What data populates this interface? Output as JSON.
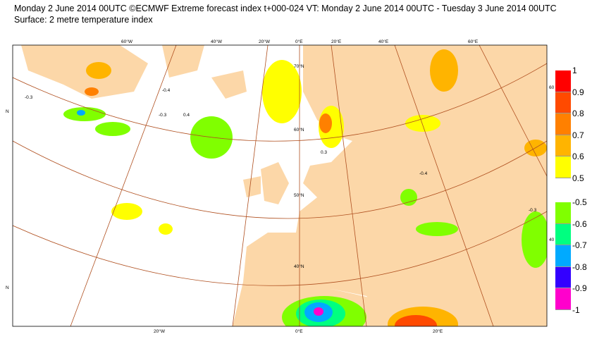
{
  "title": {
    "line1": "Monday 2 June 2014 00UTC ©ECMWF Extreme forecast index t+000-024 VT: Monday 2 June 2014 00UTC - Tuesday 3 June 2014 00UTC",
    "line2": "Surface: 2 metre temperature index"
  },
  "map": {
    "land_color": "#fcd7a8",
    "ocean_color": "#ffffff",
    "graticule_color": "#b05020",
    "lon_labels_top": [
      "60°W",
      "40°W",
      "20°W",
      "0°E",
      "20°E",
      "40°E",
      "60°E"
    ],
    "lon_labels_bottom": [
      "20°W",
      "0°E",
      "20°E"
    ],
    "lat_labels": [
      "70°N",
      "60°N",
      "50°N",
      "40°N"
    ],
    "edge_labels": [
      "N",
      "N",
      "60",
      "40"
    ],
    "contour_labels": [
      "-0.3",
      "-0.4",
      "0.4",
      "-0.3",
      "-0.4",
      "-0.3",
      "0.3"
    ]
  },
  "legend_positive": {
    "colors": [
      "#ff0000",
      "#ff4a00",
      "#ff8000",
      "#ffb400",
      "#ffff00"
    ],
    "ticks": [
      "1",
      "0.9",
      "0.8",
      "0.7",
      "0.6",
      "0.5"
    ]
  },
  "legend_negative": {
    "colors": [
      "#80ff00",
      "#00ff80",
      "#00aaff",
      "#3300ff",
      "#ff00cc"
    ],
    "ticks": [
      "-0.5",
      "-0.6",
      "-0.7",
      "-0.8",
      "-0.9",
      "-1"
    ]
  }
}
